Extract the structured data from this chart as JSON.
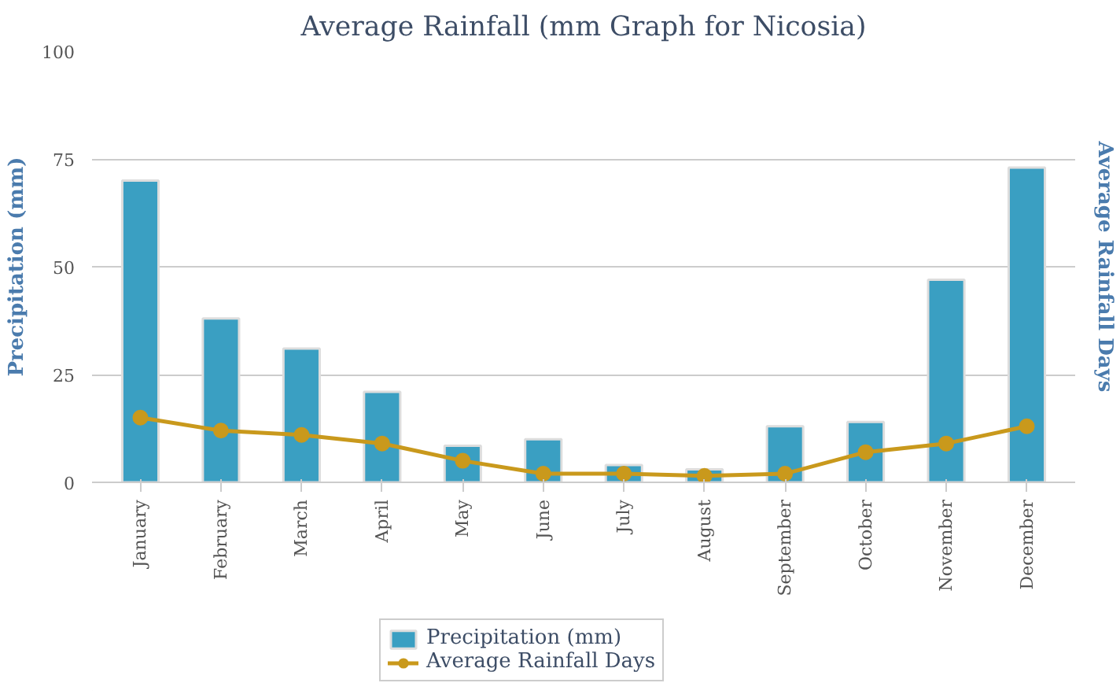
{
  "chart_data": {
    "type": "bar",
    "title": "Average Rainfall (mm Graph for Nicosia)",
    "ylabel": "Precipitation (mm)",
    "y2label": "Average Rainfall Days",
    "categories": [
      "January",
      "February",
      "March",
      "April",
      "May",
      "June",
      "July",
      "August",
      "September",
      "October",
      "November",
      "December"
    ],
    "series": [
      {
        "name": "Precipitation (mm)",
        "color": "#3a9fc2",
        "values": [
          70,
          38,
          31,
          21,
          8.5,
          10,
          4,
          3,
          13,
          14,
          47,
          73
        ]
      },
      {
        "name": "Average Rainfall Days",
        "type": "line",
        "color": "#c9991c",
        "values": [
          15,
          12,
          11,
          9,
          5,
          2,
          2,
          1.5,
          2,
          7,
          9,
          13
        ]
      }
    ],
    "ylim": [
      0,
      100
    ],
    "yticks": [
      0,
      25,
      50,
      75,
      100
    ],
    "grid": "y",
    "legend": "bottom",
    "marker": "circle"
  }
}
